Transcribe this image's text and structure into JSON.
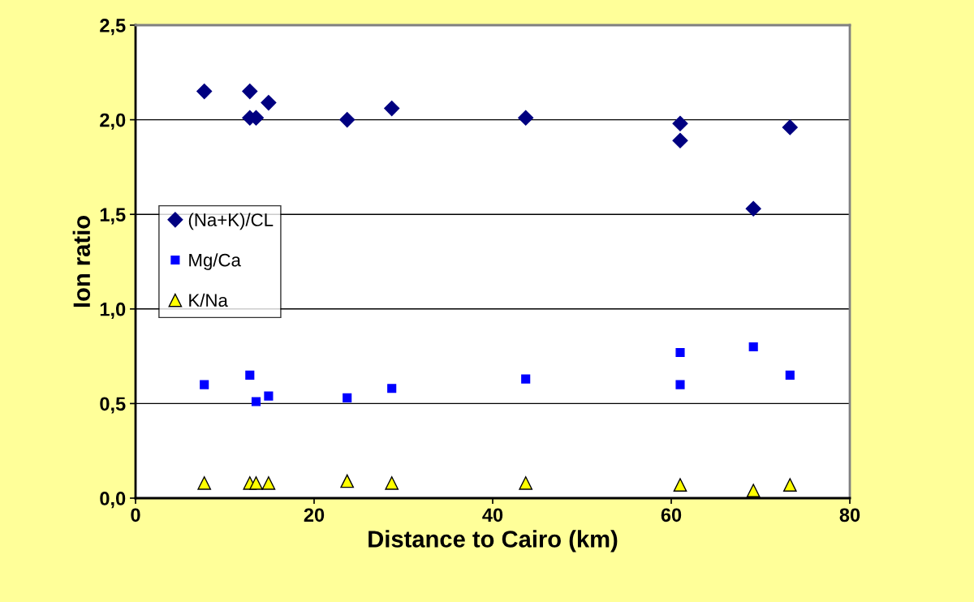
{
  "chart_data": {
    "type": "scatter",
    "xlabel": "Distance to Cairo (km)",
    "ylabel": "Ion ratio",
    "x": [
      7.7,
      12.8,
      12.8,
      13.5,
      14.9,
      23.7,
      28.7,
      43.7,
      61.0,
      61.0,
      69.2,
      73.3
    ],
    "series": [
      {
        "name": "(Na+K)/CL",
        "color": "#000080",
        "marker": "diamond",
        "values": [
          2.15,
          2.15,
          2.01,
          2.01,
          2.09,
          2.0,
          2.06,
          2.01,
          1.98,
          1.89,
          1.53,
          1.96
        ]
      },
      {
        "name": "Mg/Ca",
        "color": "#0000ff",
        "marker": "square",
        "values": [
          0.6,
          0.65,
          null,
          0.51,
          0.54,
          0.53,
          0.58,
          0.63,
          0.77,
          0.6,
          0.8,
          0.65
        ]
      },
      {
        "name": "K/Na",
        "color": "#ffff00",
        "marker": "triangle",
        "values": [
          0.08,
          null,
          0.08,
          0.08,
          0.08,
          0.09,
          0.08,
          0.08,
          null,
          0.07,
          0.04,
          0.07
        ]
      }
    ],
    "xlim": [
      0,
      80
    ],
    "xticks": [
      0,
      20,
      40,
      60,
      80
    ],
    "ylim": [
      0,
      2.5
    ],
    "yticks": [
      {
        "value": 0,
        "label": "0,0"
      },
      {
        "value": 0.5,
        "label": "0,5"
      },
      {
        "value": 1.0,
        "label": "1,0"
      },
      {
        "value": 1.5,
        "label": "1,5"
      },
      {
        "value": 2.0,
        "label": "2,0"
      },
      {
        "value": 2.5,
        "label": "2,5"
      }
    ],
    "grid": "y",
    "legend": "center left"
  }
}
